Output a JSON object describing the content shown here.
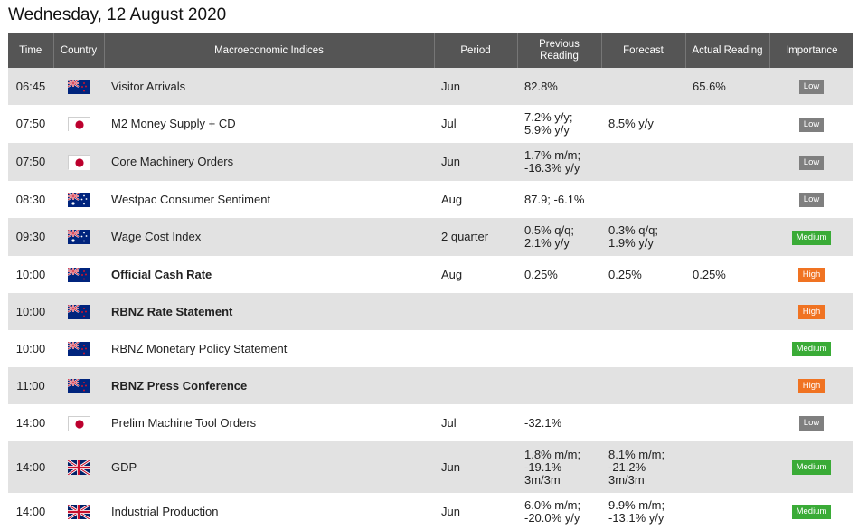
{
  "page": {
    "title": "Wednesday, 12 August 2020"
  },
  "table": {
    "headers": {
      "time": "Time",
      "country": "Country",
      "indices": "Macroeconomic Indices",
      "period": "Period",
      "previous": "Previous Reading",
      "forecast": "Forecast",
      "actual": "Actual Reading",
      "importance": "Importance"
    },
    "rows": [
      {
        "time": "06:45",
        "country": "nz-flag",
        "name": "Visitor Arrivals",
        "bold": false,
        "period": "Jun",
        "previous": "82.8%",
        "forecast": "",
        "actual": "65.6%",
        "importance": "Low"
      },
      {
        "time": "07:50",
        "country": "jp-flag",
        "name": "M2 Money Supply + CD",
        "bold": false,
        "period": "Jul",
        "previous": "7.2% y/y;\n5.9% y/y",
        "forecast": "8.5% y/y",
        "actual": "",
        "importance": "Low"
      },
      {
        "time": "07:50",
        "country": "jp-flag",
        "name": "Core Machinery Orders",
        "bold": false,
        "period": "Jun",
        "previous": "1.7% m/m;\n-16.3% y/y",
        "forecast": "",
        "actual": "",
        "importance": "Low"
      },
      {
        "time": "08:30",
        "country": "au-flag",
        "name": "Westpac Consumer Sentiment",
        "bold": false,
        "period": "Aug",
        "previous": "87.9; -6.1%",
        "forecast": "",
        "actual": "",
        "importance": "Low"
      },
      {
        "time": "09:30",
        "country": "au-flag",
        "name": "Wage Cost Index",
        "bold": false,
        "period": "2 quarter",
        "previous": "0.5% q/q;\n2.1% y/y",
        "forecast": "0.3% q/q;\n1.9% y/y",
        "actual": "",
        "importance": "Medium"
      },
      {
        "time": "10:00",
        "country": "nz-flag",
        "name": "Official Cash Rate",
        "bold": true,
        "period": "Aug",
        "previous": "0.25%",
        "forecast": "0.25%",
        "actual": "0.25%",
        "importance": "High"
      },
      {
        "time": "10:00",
        "country": "nz-flag",
        "name": "RBNZ Rate Statement",
        "bold": true,
        "period": "",
        "previous": "",
        "forecast": "",
        "actual": "",
        "importance": "High"
      },
      {
        "time": "10:00",
        "country": "nz-flag",
        "name": "RBNZ Monetary Policy Statement",
        "bold": false,
        "period": "",
        "previous": "",
        "forecast": "",
        "actual": "",
        "importance": "Medium"
      },
      {
        "time": "11:00",
        "country": "nz-flag",
        "name": "RBNZ Press Conference",
        "bold": true,
        "period": "",
        "previous": "",
        "forecast": "",
        "actual": "",
        "importance": "High"
      },
      {
        "time": "14:00",
        "country": "jp-flag",
        "name": "Prelim Machine Tool Orders",
        "bold": false,
        "period": "Jul",
        "previous": "-32.1%",
        "forecast": "",
        "actual": "",
        "importance": "Low"
      },
      {
        "time": "14:00",
        "country": "uk-flag",
        "name": "GDP",
        "bold": false,
        "period": "Jun",
        "previous": "1.8% m/m;\n-19.1%\n3m/3m",
        "forecast": "8.1% m/m;\n-21.2%\n3m/3m",
        "actual": "",
        "importance": "Medium"
      },
      {
        "time": "14:00",
        "country": "uk-flag",
        "name": "Industrial Production",
        "bold": false,
        "period": "Jun",
        "previous": "6.0% m/m;\n-20.0% y/y",
        "forecast": "9.9% m/m;\n-13.1% y/y",
        "actual": "",
        "importance": "Medium"
      }
    ]
  },
  "colors": {
    "header_bg": "#555555",
    "row_alt": "#e2e2e2",
    "low": "#7f7f7f",
    "medium": "#3aab37",
    "high": "#f07322"
  }
}
